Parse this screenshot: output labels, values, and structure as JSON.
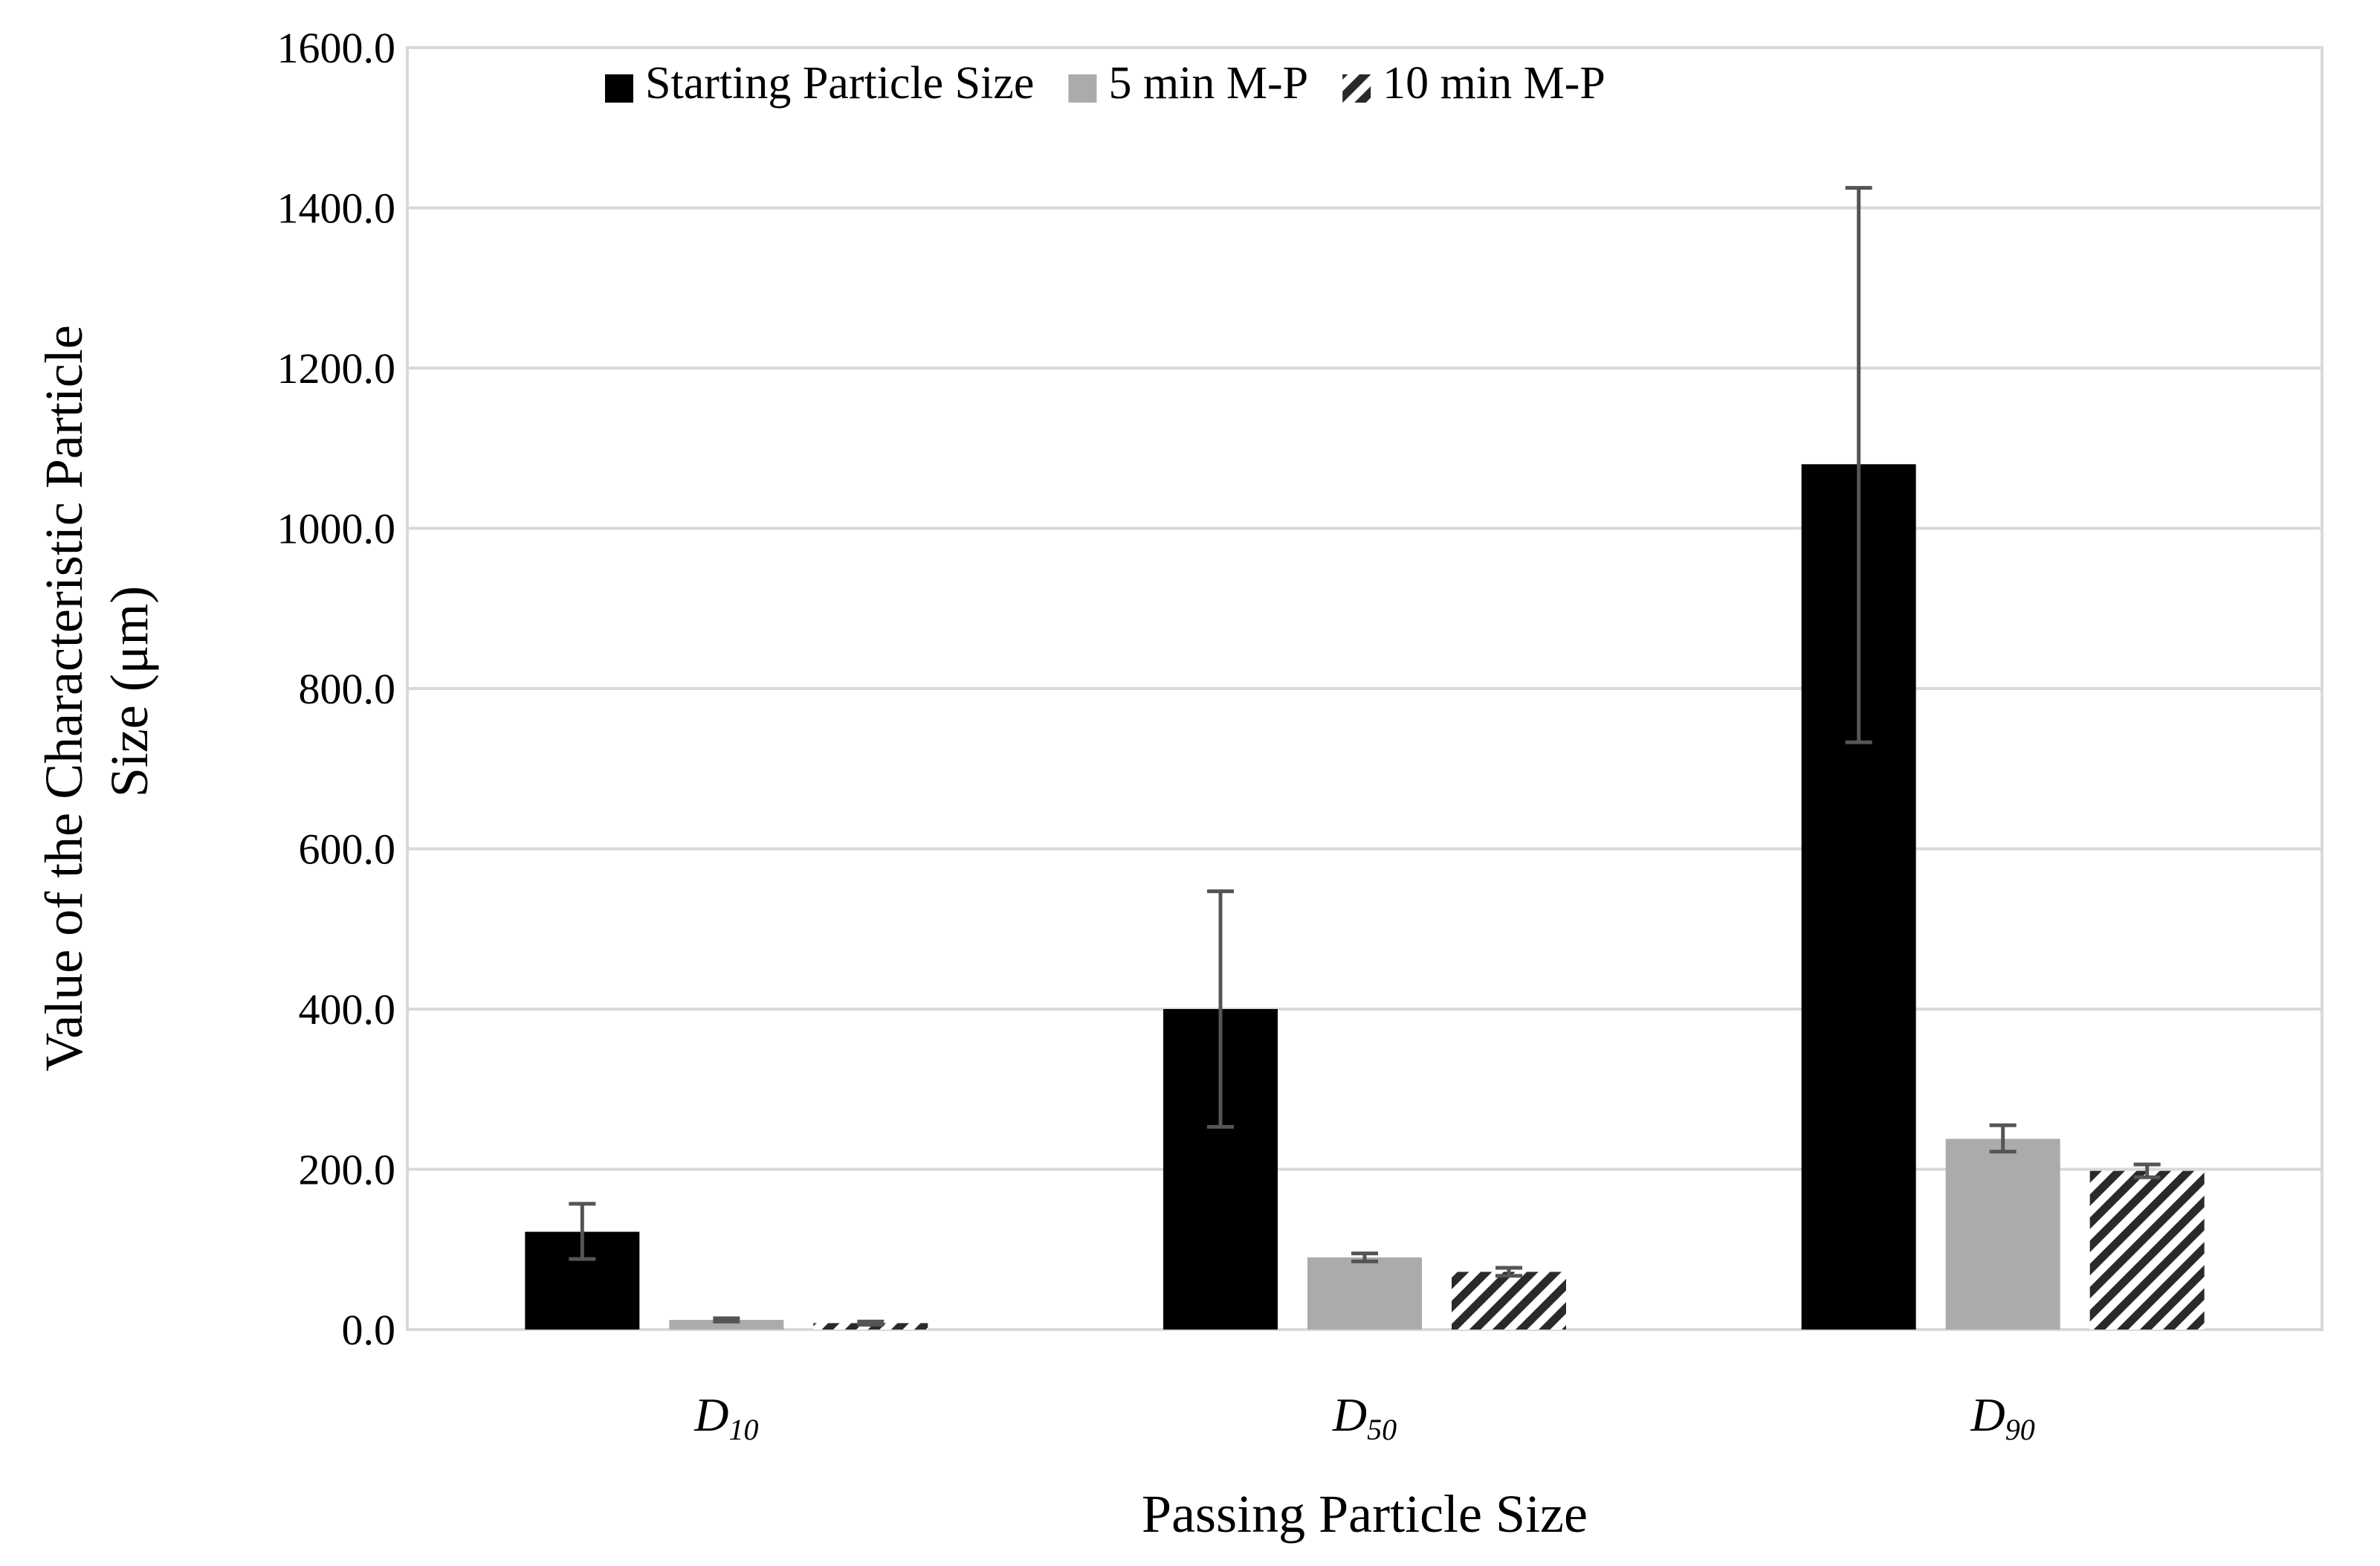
{
  "chart_data": {
    "type": "bar",
    "title": "",
    "xlabel": "Passing Particle Size",
    "ylabel": "Value of the Characteristic Particle Size (μm)",
    "ylabel_lines": [
      "Value of the Characteristic Particle",
      "Size (μm)"
    ],
    "ylim": [
      0,
      1600
    ],
    "yticks": [
      0,
      200,
      400,
      600,
      800,
      1000,
      1200,
      1400,
      1600
    ],
    "ytick_labels": [
      "0.0",
      "200.0",
      "400.0",
      "600.0",
      "800.0",
      "1000.0",
      "1200.0",
      "1400.0",
      "1600.0"
    ],
    "categories": [
      {
        "main": "D",
        "sub": "10"
      },
      {
        "main": "D",
        "sub": "50"
      },
      {
        "main": "D",
        "sub": "90"
      }
    ],
    "grid": true,
    "legend_position": "top-center",
    "series": [
      {
        "name": "Starting Particle Size",
        "fill": "solid",
        "color": "#000000",
        "values": [
          122,
          400,
          1080
        ],
        "error": [
          [
            88,
            157
          ],
          [
            253,
            547
          ],
          [
            733,
            1425
          ]
        ]
      },
      {
        "name": "5 min M-P",
        "fill": "solid",
        "color": "#ababab",
        "values": [
          12,
          90,
          238
        ],
        "error": [
          [
            10,
            14
          ],
          [
            85,
            95
          ],
          [
            222,
            255
          ]
        ]
      },
      {
        "name": "10 min M-P",
        "fill": "hatch",
        "color": "#2a2a2a",
        "values": [
          8,
          72,
          198
        ],
        "error": [
          [
            6,
            10
          ],
          [
            67,
            77
          ],
          [
            190,
            206
          ]
        ]
      }
    ],
    "colors": {
      "grid": "#d9d9d9",
      "frame": "#d9d9d9",
      "errorbar": "#555555",
      "hatch_bg": "#ffffff"
    }
  }
}
